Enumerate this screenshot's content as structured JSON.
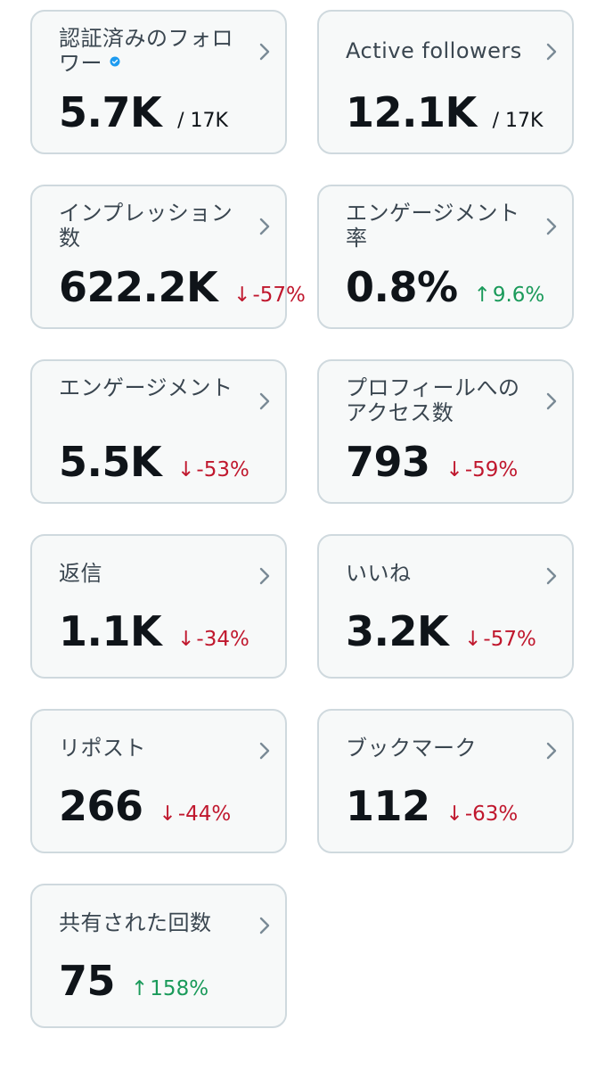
{
  "cards": [
    {
      "label": "認証済みのフォロワー",
      "value": "5.7K",
      "sub": "/ 17K",
      "verified": true
    },
    {
      "label": "Active followers",
      "value": "12.1K",
      "sub": "/ 17K"
    },
    {
      "label": "インプレッション数",
      "value": "622.2K",
      "delta_arrow": "↓",
      "delta": "-57%",
      "trend": "down"
    },
    {
      "label": "エンゲージメント率",
      "value": "0.8%",
      "delta_arrow": "↑",
      "delta": "9.6%",
      "trend": "up"
    },
    {
      "label": "エンゲージメント",
      "value": "5.5K",
      "delta_arrow": "↓",
      "delta": "-53%",
      "trend": "down"
    },
    {
      "label": "プロフィールへのアクセス数",
      "value": "793",
      "delta_arrow": "↓",
      "delta": "-59%",
      "trend": "down"
    },
    {
      "label": "返信",
      "value": "1.1K",
      "delta_arrow": "↓",
      "delta": "-34%",
      "trend": "down"
    },
    {
      "label": "いいね",
      "value": "3.2K",
      "delta_arrow": "↓",
      "delta": "-57%",
      "trend": "down"
    },
    {
      "label": "リポスト",
      "value": "266",
      "delta_arrow": "↓",
      "delta": "-44%",
      "trend": "down"
    },
    {
      "label": "ブックマーク",
      "value": "112",
      "delta_arrow": "↓",
      "delta": "-63%",
      "trend": "down"
    },
    {
      "label": "共有された回数",
      "value": "75",
      "delta_arrow": "↑",
      "delta": "158%",
      "trend": "up"
    }
  ],
  "colors": {
    "card_bg": "#f7f9f9",
    "card_border": "#cfd9de",
    "down": "#c0182e",
    "up": "#1a9a5a",
    "verified": "#1d9bf0",
    "chevron": "#7a8a96"
  },
  "icons": {
    "chevron": "chevron-right-icon",
    "verified": "verified-badge-icon"
  }
}
